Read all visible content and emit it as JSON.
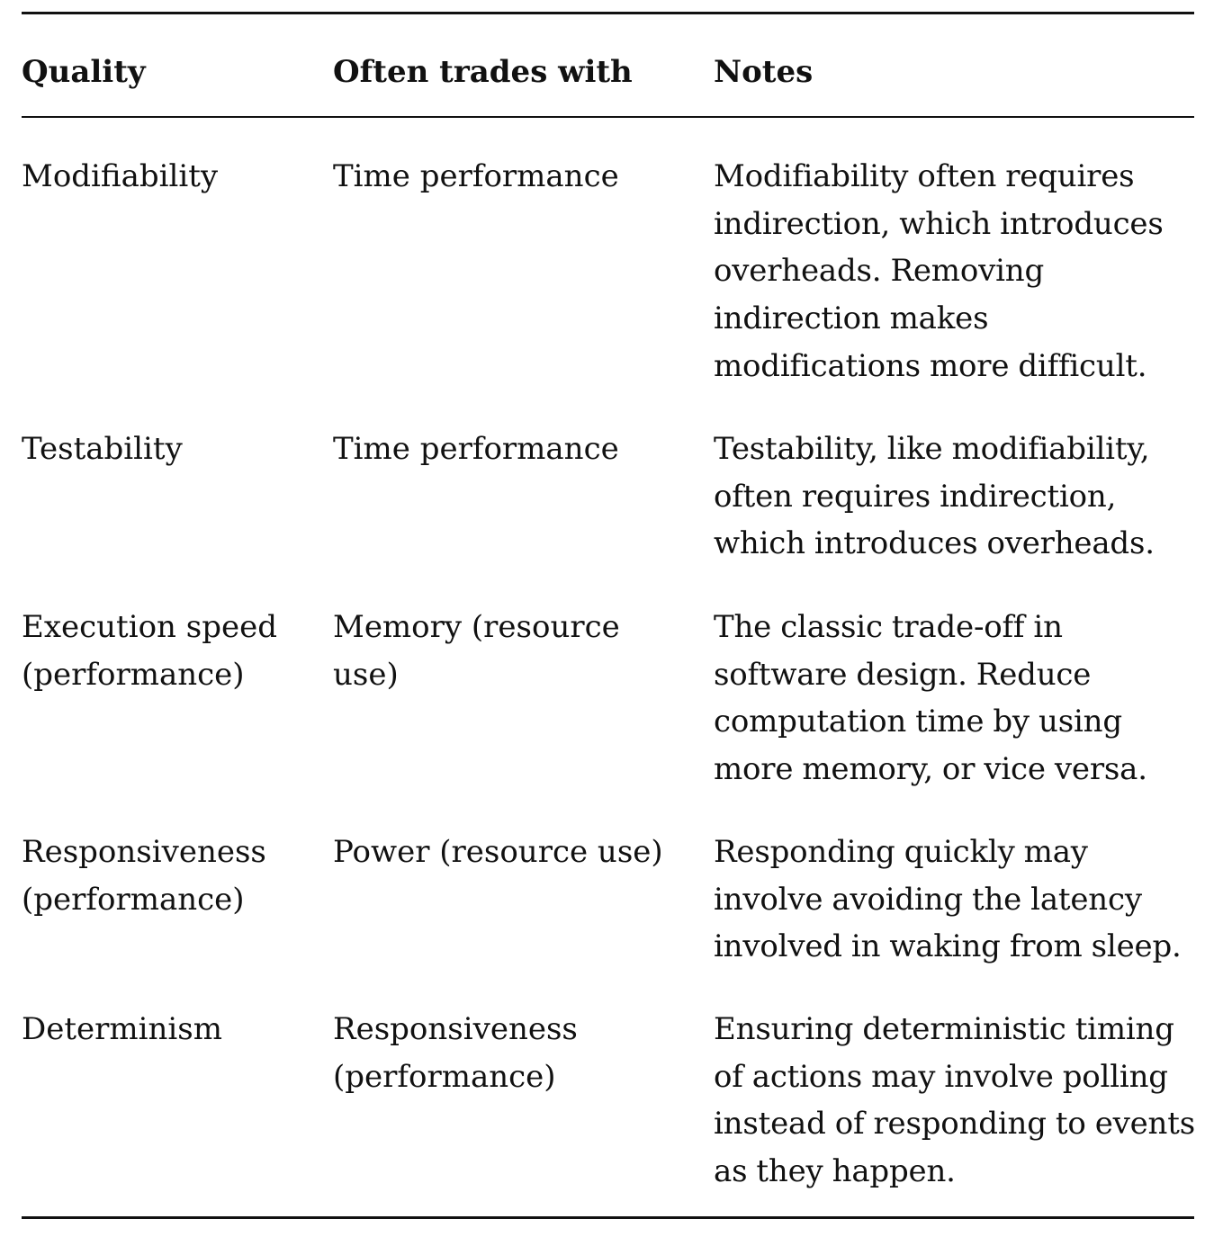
{
  "table": {
    "headers": {
      "quality": "Quality",
      "trades": "Often trades with",
      "notes": "Notes"
    },
    "rows": [
      {
        "quality": "Modifiability",
        "trades": "Time performance",
        "notes": "Modifiability often requires indirection, which introduces overheads. Removing indirection makes modifications more difficult."
      },
      {
        "quality": "Testability",
        "trades": "Time performance",
        "notes": "Testability, like modifiability, often requires indirection, which introduces overheads."
      },
      {
        "quality": "Execution speed (performance)",
        "trades": "Memory (resource use)",
        "notes": "The classic trade-off in software design. Reduce computation time by using more memory, or vice versa."
      },
      {
        "quality": "Responsiveness (performance)",
        "trades": "Power (resource use)",
        "notes": "Responding quickly may involve avoiding the latency involved in waking from sleep."
      },
      {
        "quality": "Determinism",
        "trades": "Responsiveness (performance)",
        "notes": "Ensuring deterministic timing of actions may involve polling instead of responding to events as they happen."
      }
    ]
  }
}
